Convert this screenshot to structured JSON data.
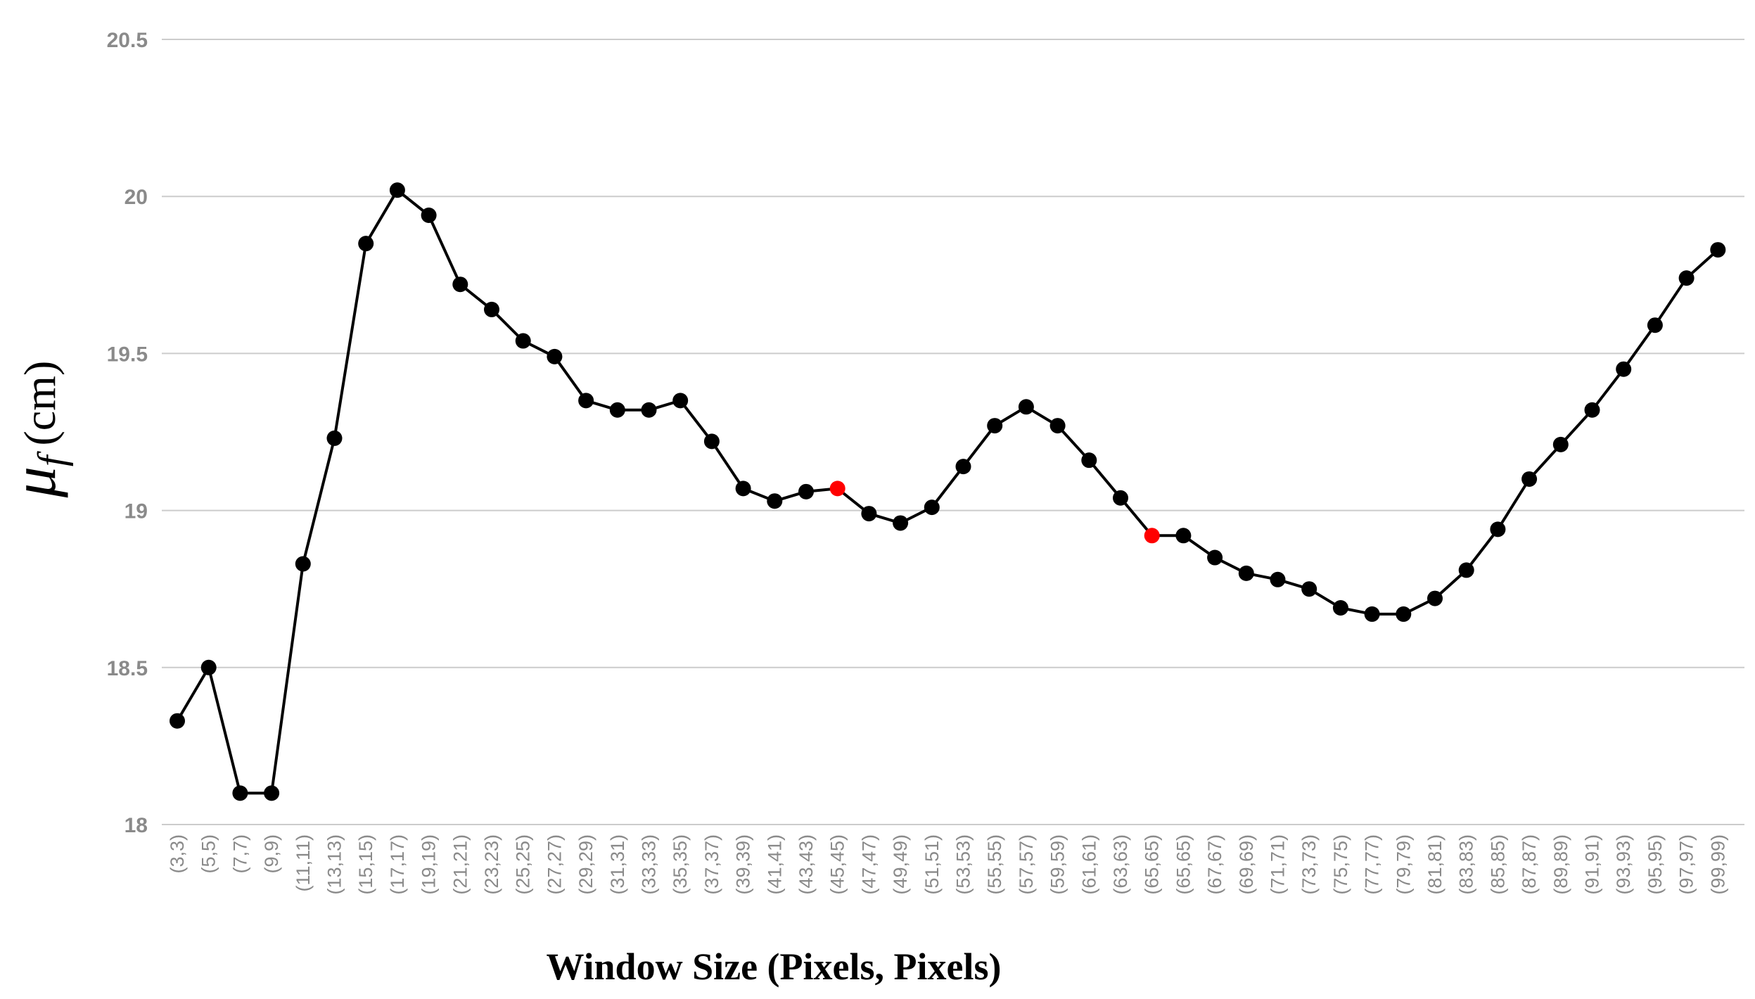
{
  "chart_data": {
    "type": "line",
    "xlabel": "Window Size (Pixels, Pixels)",
    "ylabel": {
      "symbol": "μ",
      "subscript": "f",
      "unit": "(cm)"
    },
    "ylim": [
      18,
      20.5
    ],
    "yticks": [
      "18",
      "18.5",
      "19",
      "19.5",
      "20",
      "20.5"
    ],
    "ytick_values": [
      18,
      18.5,
      19,
      19.5,
      20,
      20.5
    ],
    "grid": true,
    "legend": "none",
    "colors": {
      "line": "#000000",
      "marker": "#000000",
      "highlight": "#ff0000",
      "grid": "#cccccc",
      "tick": "#8a8a8a"
    },
    "categories": [
      "(3,3)",
      "(5,5)",
      "(7,7)",
      "(9,9)",
      "(11,11)",
      "(13,13)",
      "(15,15)",
      "(17,17)",
      "(19,19)",
      "(21,21)",
      "(23,23)",
      "(25,25)",
      "(27,27)",
      "(29,29)",
      "(31,31)",
      "(33,33)",
      "(35,35)",
      "(37,37)",
      "(39,39)",
      "(41,41)",
      "(43,43)",
      "(45,45)",
      "(47,47)",
      "(49,49)",
      "(51,51)",
      "(53,53)",
      "(55,55)",
      "(57,57)",
      "(59,59)",
      "(61,61)",
      "(63,63)",
      "(65,65)",
      "(65,65)",
      "(67,67)",
      "(69,69)",
      "(71,71)",
      "(73,73)",
      "(75,75)",
      "(77,77)",
      "(79,79)",
      "(81,81)",
      "(83,83)",
      "(85,85)",
      "(87,87)",
      "(89,89)",
      "(91,91)",
      "(93,93)",
      "(95,95)",
      "(97,97)",
      "(99,99)"
    ],
    "series": [
      {
        "values": [
          18.33,
          18.5,
          18.1,
          18.1,
          18.83,
          19.23,
          19.85,
          20.02,
          19.94,
          19.72,
          19.64,
          19.54,
          19.49,
          19.35,
          19.32,
          19.32,
          19.35,
          19.22,
          19.07,
          19.03,
          19.06,
          19.07,
          18.99,
          18.96,
          19.01,
          19.14,
          19.27,
          19.33,
          19.27,
          19.16,
          19.04,
          18.92,
          18.92,
          18.85,
          18.8,
          18.78,
          18.75,
          18.69,
          18.67,
          18.67,
          18.72,
          18.81,
          18.94,
          19.1,
          19.21,
          19.32,
          19.45,
          19.59,
          19.74,
          19.83
        ]
      }
    ],
    "highlighted_points": [
      "(45,45)",
      "(65,65)"
    ]
  }
}
